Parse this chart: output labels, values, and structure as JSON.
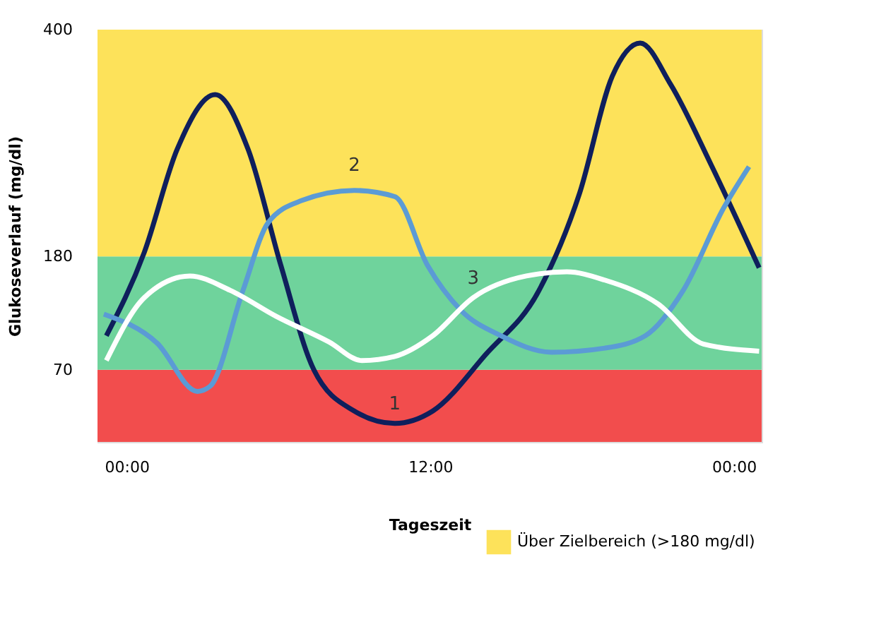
{
  "chart_data": {
    "type": "line",
    "xlabel": "Tageszeit",
    "ylabel": "Glukoseverlauf (mg/dl)",
    "xlim": [
      -1.15,
      25.1
    ],
    "xticks": [
      {
        "value": 0,
        "label": "00:00"
      },
      {
        "value": 12,
        "label": "12:00"
      },
      {
        "value": 24,
        "label": "00:00"
      }
    ],
    "ylim": [
      0,
      400
    ],
    "yticks": [
      70,
      180,
      400
    ],
    "grid": false,
    "legend": "bottom right",
    "line_style": "solid",
    "marker": "none",
    "bands": [
      {
        "axis": "y",
        "from": 0,
        "to": 70,
        "color": "#f24d4d"
      },
      {
        "axis": "y",
        "from": 70,
        "to": 180,
        "color": "#6fd39c"
      },
      {
        "axis": "y",
        "from": 180,
        "to": 400,
        "color": "#fde25a",
        "label": "Über Zielbereich (>180 mg/dl)"
      }
    ],
    "series": [
      {
        "name": "1",
        "color": "#0f1f5c",
        "x": [
          -0.8,
          0.7,
          2.0,
          3.5,
          4.8,
          6.1,
          7.4,
          9.0,
          10.6,
          12.1,
          14.2,
          16.3,
          17.9,
          19.2,
          20.3,
          21.5,
          23.1,
          25.0
        ],
        "values": [
          103,
          184,
          284,
          337,
          284,
          171,
          70,
          30,
          18,
          30,
          85,
          147,
          241,
          355,
          387,
          347,
          269,
          169
        ]
      },
      {
        "name": "2",
        "color": "#5b9bd5",
        "x": [
          -0.9,
          1.2,
          2.8,
          3.3,
          4.6,
          5.6,
          6.9,
          9.0,
          10.6,
          11.9,
          13.2,
          14.8,
          16.8,
          18.9,
          20.5,
          22.0,
          23.6,
          24.6
        ],
        "values": [
          124,
          96,
          49,
          54,
          147,
          213,
          234,
          244,
          238,
          171,
          128,
          103,
          87,
          91,
          103,
          147,
          227,
          267
        ]
      },
      {
        "name": "3",
        "color": "#ffffff",
        "x": [
          -0.8,
          0.7,
          2.5,
          4.1,
          5.9,
          8.0,
          9.3,
          10.6,
          12.1,
          13.7,
          15.8,
          17.4,
          18.9,
          21.0,
          22.8,
          25.0
        ],
        "values": [
          79,
          140,
          161,
          147,
          122,
          97,
          79,
          83,
          103,
          140,
          161,
          165,
          157,
          134,
          95,
          88
        ]
      }
    ]
  }
}
